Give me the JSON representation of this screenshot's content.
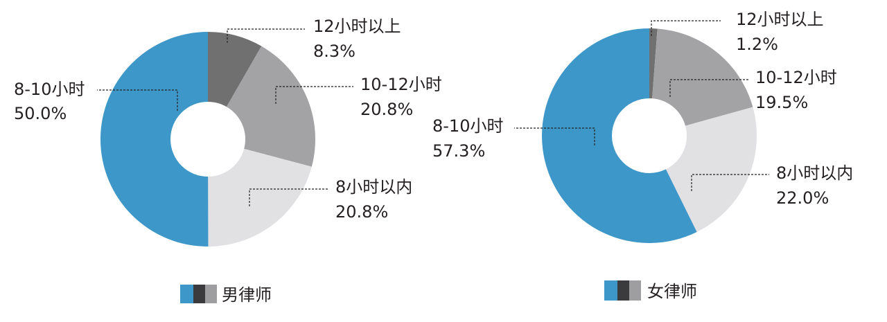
{
  "chart_data": [
    {
      "type": "pie",
      "donut": true,
      "legend_label": "男律师",
      "legend_swatches": [
        "#3d97c9",
        "#3b3b3d",
        "#9e9d9f"
      ],
      "slices": [
        {
          "label": "12小时以上",
          "value_label": "8.3%",
          "value": 8.3,
          "color": "#717071"
        },
        {
          "label": "10-12小时",
          "value_label": "20.8%",
          "value": 20.8,
          "color": "#a3a2a4"
        },
        {
          "label": "8小时以内",
          "value_label": "20.8%",
          "value": 20.8,
          "color": "#e1e0e3"
        },
        {
          "label": "8-10小时",
          "value_label": "50.0%",
          "value": 50.0,
          "color": "#3d97c9"
        }
      ]
    },
    {
      "type": "pie",
      "donut": true,
      "legend_label": "女律师",
      "legend_swatches": [
        "#3d97c9",
        "#3b3b3d",
        "#9e9d9f"
      ],
      "slices": [
        {
          "label": "12小时以上",
          "value_label": "1.2%",
          "value": 1.2,
          "color": "#717071"
        },
        {
          "label": "10-12小时",
          "value_label": "19.5%",
          "value": 19.5,
          "color": "#a3a2a4"
        },
        {
          "label": "8小时以内",
          "value_label": "22.0%",
          "value": 22.0,
          "color": "#e1e0e3"
        },
        {
          "label": "8-10小时",
          "value_label": "57.3%",
          "value": 57.3,
          "color": "#3d97c9"
        }
      ]
    }
  ]
}
